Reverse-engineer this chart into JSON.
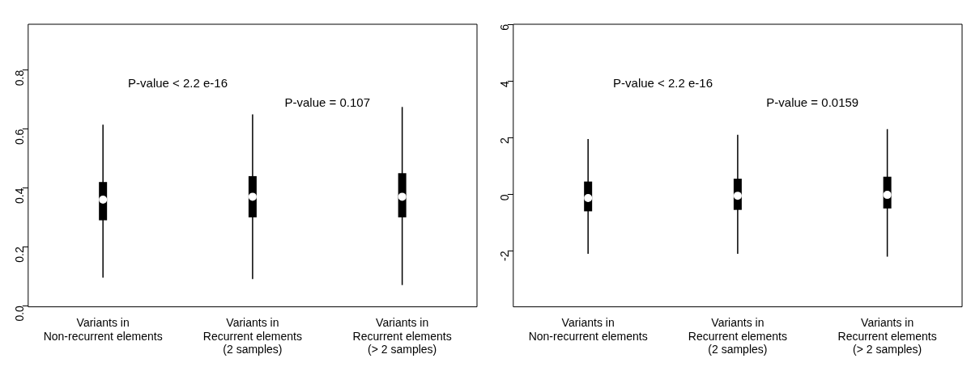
{
  "chart_data": [
    {
      "type": "box",
      "categories": [
        "Variants in\nNon-recurrent elements",
        "Variants in\nRecurrent elements\n(2 samples)",
        "Variants in\nRecurrent elements\n(> 2 samples)"
      ],
      "series": [
        {
          "color": "#000000",
          "boxes": [
            {
              "low": 0.095,
              "q1": 0.29,
              "median": 0.36,
              "q3": 0.42,
              "high": 0.615
            },
            {
              "low": 0.09,
              "q1": 0.3,
              "median": 0.37,
              "q3": 0.44,
              "high": 0.65
            },
            {
              "low": 0.07,
              "q1": 0.3,
              "median": 0.37,
              "q3": 0.45,
              "high": 0.675
            }
          ]
        }
      ],
      "ylim": [
        -0.004,
        0.956
      ],
      "yticks": [
        {
          "value": 0,
          "label": "0.0"
        },
        0.2,
        0.4,
        0.6,
        0.8
      ],
      "grid": false,
      "legend": false,
      "annotations": [
        "P-value < 2.2 e-16",
        "P-value = 0.107"
      ]
    },
    {
      "type": "box",
      "categories": [
        "Variants in\nNon-recurrent elements",
        "Variants in\nRecurrent elements\n(2 samples)",
        "Variants in\nRecurrent elements\n(> 2 samples)"
      ],
      "series": [
        {
          "color": "#000000",
          "boxes": [
            {
              "low": -2.1,
              "q1": -0.6,
              "median": -0.13,
              "q3": 0.45,
              "high": 1.95
            },
            {
              "low": -2.1,
              "q1": -0.55,
              "median": -0.05,
              "q3": 0.55,
              "high": 2.1
            },
            {
              "low": -2.2,
              "q1": -0.5,
              "median": -0.02,
              "q3": 0.62,
              "high": 2.3
            }
          ]
        }
      ],
      "ylim": [
        -3.97,
        6.0
      ],
      "yticks": [
        -2,
        0,
        2,
        4,
        6
      ],
      "grid": false,
      "legend": false,
      "annotations": [
        "P-value < 2.2 e-16",
        "P-value = 0.0159"
      ]
    }
  ]
}
